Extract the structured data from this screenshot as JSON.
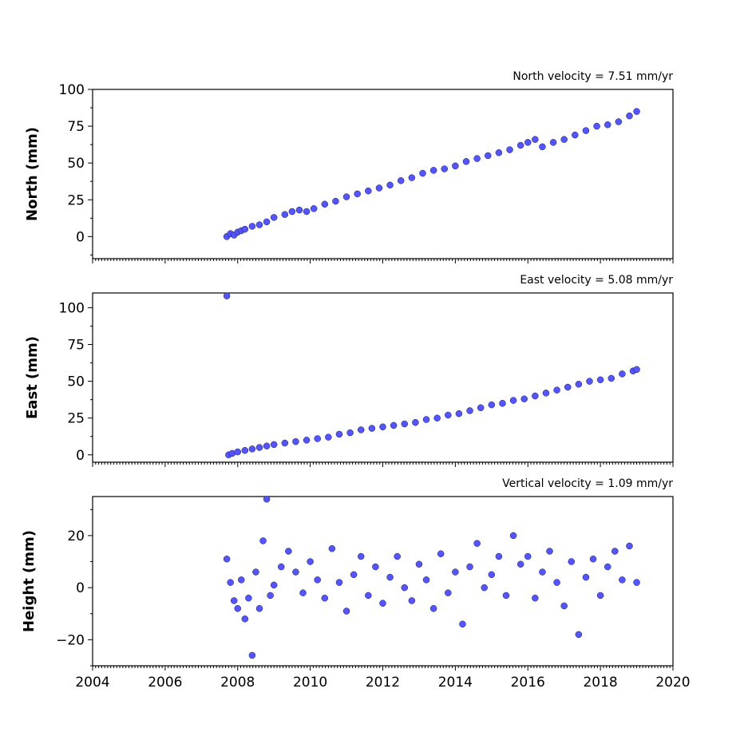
{
  "chart_data": [
    {
      "type": "scatter",
      "title": "North velocity = 7.51 mm/yr",
      "ylabel": "North (mm)",
      "xlim": [
        2004,
        2020
      ],
      "ylim": [
        -15,
        100
      ],
      "yticks": [
        "0",
        "25",
        "50",
        "75",
        "100"
      ],
      "color": "#5555ff",
      "edge_color": "#1a1a40",
      "series": [
        {
          "x": [
            2007.7,
            2007.8,
            2007.9,
            2008.0,
            2008.1,
            2008.2,
            2008.4,
            2008.6,
            2008.8,
            2009.0,
            2009.3,
            2009.5,
            2009.7,
            2009.9,
            2010.1,
            2010.4,
            2010.7,
            2011.0,
            2011.3,
            2011.6,
            2011.9,
            2012.2,
            2012.5,
            2012.8,
            2013.1,
            2013.4,
            2013.7,
            2014.0,
            2014.3,
            2014.6,
            2014.9,
            2015.2,
            2015.5,
            2015.8,
            2016.0,
            2016.2,
            2016.4,
            2016.7,
            2017.0,
            2017.3,
            2017.6,
            2017.9,
            2018.2,
            2018.5,
            2018.8,
            2019.0
          ],
          "y": [
            0,
            2,
            1,
            3,
            4,
            5,
            7,
            8,
            10,
            13,
            15,
            17,
            18,
            17,
            19,
            22,
            24,
            27,
            29,
            31,
            33,
            35,
            38,
            40,
            43,
            45,
            46,
            48,
            51,
            53,
            55,
            57,
            59,
            62,
            64,
            66,
            61,
            64,
            66,
            69,
            72,
            75,
            76,
            78,
            82,
            85
          ]
        }
      ]
    },
    {
      "type": "scatter",
      "title": "East velocity = 5.08 mm/yr",
      "ylabel": "East (mm)",
      "xlim": [
        2004,
        2020
      ],
      "ylim": [
        -5,
        110
      ],
      "yticks": [
        "0",
        "25",
        "50",
        "75",
        "100"
      ],
      "color": "#5555ff",
      "edge_color": "#1a1a40",
      "series": [
        {
          "x": [
            2007.7,
            2007.75,
            2007.85,
            2008.0,
            2008.2,
            2008.4,
            2008.6,
            2008.8,
            2009.0,
            2009.3,
            2009.6,
            2009.9,
            2010.2,
            2010.5,
            2010.8,
            2011.1,
            2011.4,
            2011.7,
            2012.0,
            2012.3,
            2012.6,
            2012.9,
            2013.2,
            2013.5,
            2013.8,
            2014.1,
            2014.4,
            2014.7,
            2015.0,
            2015.3,
            2015.6,
            2015.9,
            2016.2,
            2016.5,
            2016.8,
            2017.1,
            2017.4,
            2017.7,
            2018.0,
            2018.3,
            2018.6,
            2018.9,
            2019.0
          ],
          "y": [
            108,
            0,
            1,
            2,
            3,
            4,
            5,
            6,
            7,
            8,
            9,
            10,
            11,
            12,
            14,
            15,
            17,
            18,
            19,
            20,
            21,
            22,
            24,
            25,
            27,
            28,
            30,
            32,
            34,
            35,
            37,
            38,
            40,
            42,
            44,
            46,
            48,
            50,
            51,
            52,
            55,
            57,
            58
          ]
        }
      ]
    },
    {
      "type": "scatter",
      "title": "Vertical velocity = 1.09 mm/yr",
      "ylabel": "Height (mm)",
      "xlabel_ticks": [
        "2004",
        "2006",
        "2008",
        "2010",
        "2012",
        "2014",
        "2016",
        "2018",
        "2020"
      ],
      "xlim": [
        2004,
        2020
      ],
      "ylim": [
        -30,
        35
      ],
      "yticks": [
        "−20",
        "0",
        "20"
      ],
      "color": "#5555ff",
      "edge_color": "#1a1a40",
      "series": [
        {
          "x": [
            2007.7,
            2007.8,
            2007.9,
            2008.0,
            2008.1,
            2008.2,
            2008.3,
            2008.4,
            2008.5,
            2008.6,
            2008.7,
            2008.8,
            2008.9,
            2009.0,
            2009.2,
            2009.4,
            2009.6,
            2009.8,
            2010.0,
            2010.2,
            2010.4,
            2010.6,
            2010.8,
            2011.0,
            2011.2,
            2011.4,
            2011.6,
            2011.8,
            2012.0,
            2012.2,
            2012.4,
            2012.6,
            2012.8,
            2013.0,
            2013.2,
            2013.4,
            2013.6,
            2013.8,
            2014.0,
            2014.2,
            2014.4,
            2014.6,
            2014.8,
            2015.0,
            2015.2,
            2015.4,
            2015.6,
            2015.8,
            2016.0,
            2016.2,
            2016.4,
            2016.6,
            2016.8,
            2017.0,
            2017.2,
            2017.4,
            2017.6,
            2017.8,
            2018.0,
            2018.2,
            2018.4,
            2018.6,
            2018.8,
            2019.0
          ],
          "y": [
            11,
            2,
            -5,
            -8,
            3,
            -12,
            -4,
            -26,
            6,
            -8,
            18,
            34,
            -3,
            1,
            8,
            14,
            6,
            -2,
            10,
            3,
            -4,
            15,
            2,
            -9,
            5,
            12,
            -3,
            8,
            -6,
            4,
            12,
            0,
            -5,
            9,
            3,
            -8,
            13,
            -2,
            6,
            -14,
            8,
            17,
            0,
            5,
            12,
            -3,
            20,
            9,
            12,
            -4,
            6,
            14,
            2,
            -7,
            10,
            -18,
            4,
            11,
            -3,
            8,
            14,
            3,
            16,
            2
          ]
        }
      ]
    }
  ]
}
